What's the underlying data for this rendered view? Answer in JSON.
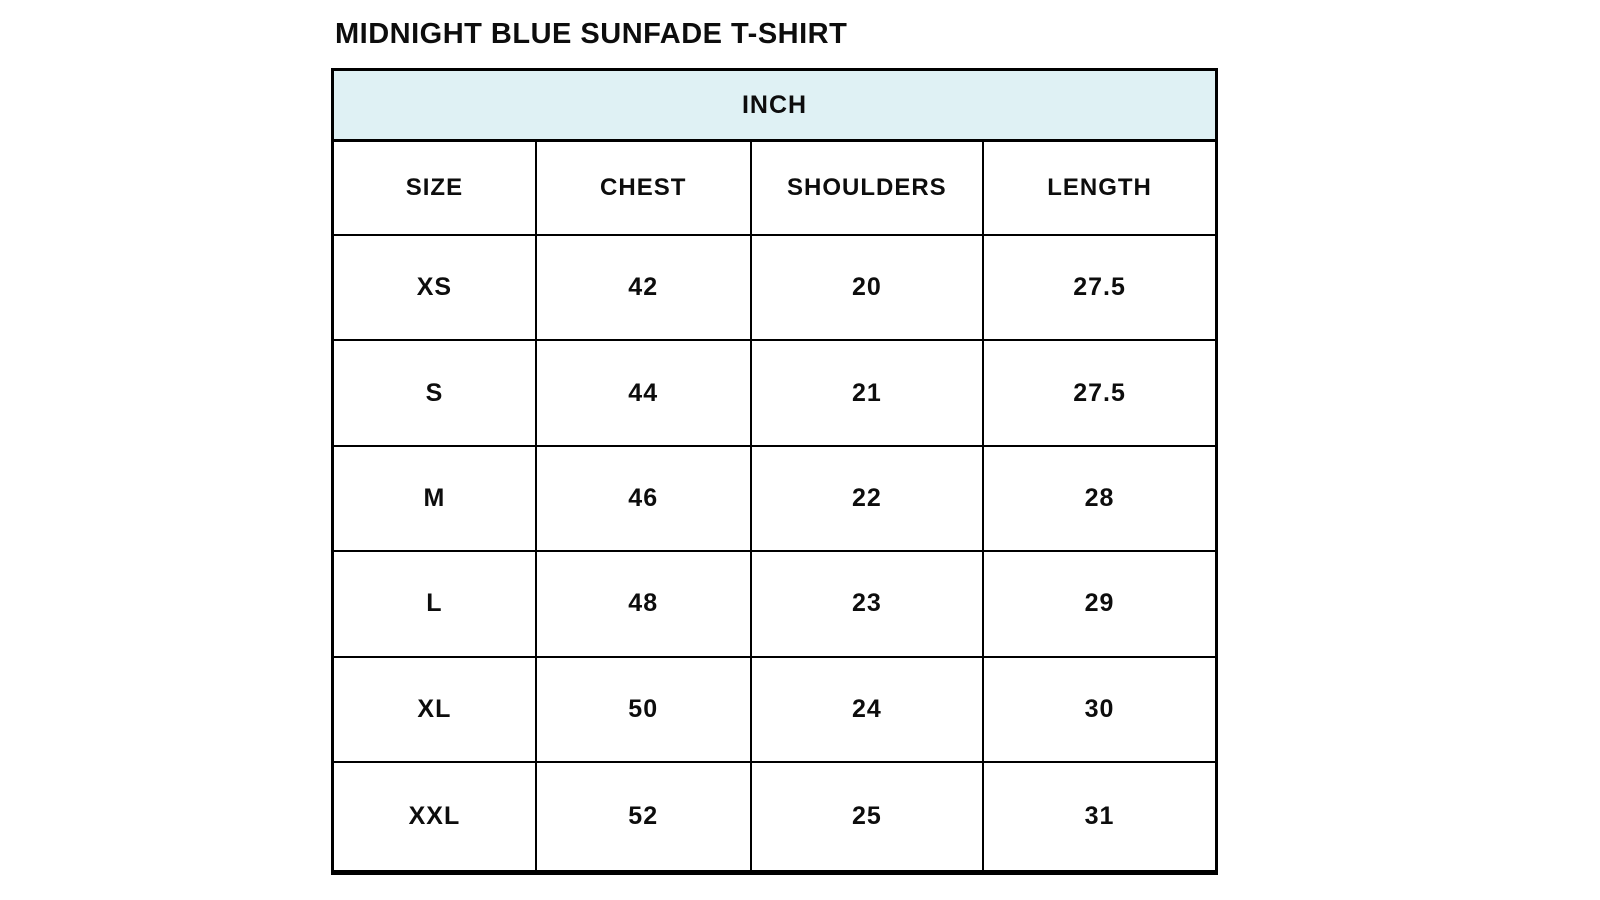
{
  "page_title": "MIDNIGHT BLUE SUNFADE T-SHIRT",
  "unit_label": "INCH",
  "colors": {
    "page_background": "#ffffff",
    "unit_banner_background": "#dff1f4",
    "grid_border": "#000000",
    "text": "#0d0d0d"
  },
  "chart_data": {
    "type": "table",
    "title": "MIDNIGHT BLUE SUNFADE T-SHIRT",
    "unit": "INCH",
    "columns": [
      "SIZE",
      "CHEST",
      "SHOULDERS",
      "LENGTH"
    ],
    "rows": [
      [
        "XS",
        42,
        20,
        27.5
      ],
      [
        "S",
        44,
        21,
        27.5
      ],
      [
        "M",
        46,
        22,
        28
      ],
      [
        "L",
        48,
        23,
        29
      ],
      [
        "XL",
        50,
        24,
        30
      ],
      [
        "XXL",
        52,
        25,
        31
      ]
    ]
  }
}
